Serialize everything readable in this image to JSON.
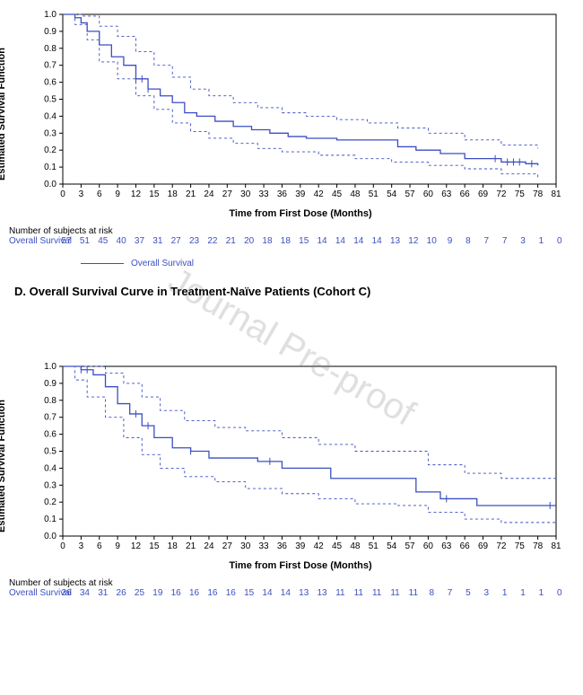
{
  "watermark_text": "Journal Pre-proof",
  "axis": {
    "ylabel": "Estimated Survival Function",
    "xlabel": "Time from First Dose (Months)",
    "ylim": [
      0,
      1.0
    ],
    "ytick_step": 0.1,
    "xlim": [
      0,
      81
    ],
    "xtick_step": 3,
    "axis_color": "#000000",
    "curve_color": "#3b4fc2",
    "ci_dash": "3 3"
  },
  "risk_label": "Number of subjects at risk",
  "risk_series_name": "Overall Survival",
  "legend_text": "Overall Survival",
  "section_heading": "D.  Overall Survival Curve in Treatment-Naïve Patients (Cohort C)",
  "chart1": {
    "main": [
      [
        0,
        1.0
      ],
      [
        2,
        0.98
      ],
      [
        3,
        0.95
      ],
      [
        4,
        0.9
      ],
      [
        6,
        0.82
      ],
      [
        8,
        0.75
      ],
      [
        10,
        0.7
      ],
      [
        12,
        0.62
      ],
      [
        14,
        0.56
      ],
      [
        16,
        0.52
      ],
      [
        18,
        0.48
      ],
      [
        20,
        0.42
      ],
      [
        22,
        0.4
      ],
      [
        25,
        0.37
      ],
      [
        28,
        0.34
      ],
      [
        31,
        0.32
      ],
      [
        34,
        0.3
      ],
      [
        37,
        0.28
      ],
      [
        40,
        0.27
      ],
      [
        45,
        0.26
      ],
      [
        50,
        0.26
      ],
      [
        55,
        0.22
      ],
      [
        58,
        0.2
      ],
      [
        62,
        0.18
      ],
      [
        66,
        0.15
      ],
      [
        72,
        0.13
      ],
      [
        76,
        0.12
      ],
      [
        78,
        0.11
      ]
    ],
    "upper": [
      [
        0,
        1.0
      ],
      [
        3,
        0.99
      ],
      [
        6,
        0.93
      ],
      [
        9,
        0.87
      ],
      [
        12,
        0.78
      ],
      [
        15,
        0.7
      ],
      [
        18,
        0.63
      ],
      [
        21,
        0.56
      ],
      [
        24,
        0.52
      ],
      [
        28,
        0.48
      ],
      [
        32,
        0.45
      ],
      [
        36,
        0.42
      ],
      [
        40,
        0.4
      ],
      [
        45,
        0.38
      ],
      [
        50,
        0.36
      ],
      [
        55,
        0.33
      ],
      [
        60,
        0.3
      ],
      [
        66,
        0.26
      ],
      [
        72,
        0.23
      ],
      [
        78,
        0.21
      ]
    ],
    "lower": [
      [
        0,
        1.0
      ],
      [
        2,
        0.94
      ],
      [
        4,
        0.85
      ],
      [
        6,
        0.72
      ],
      [
        9,
        0.62
      ],
      [
        12,
        0.52
      ],
      [
        15,
        0.44
      ],
      [
        18,
        0.36
      ],
      [
        21,
        0.31
      ],
      [
        24,
        0.27
      ],
      [
        28,
        0.24
      ],
      [
        32,
        0.21
      ],
      [
        36,
        0.19
      ],
      [
        42,
        0.17
      ],
      [
        48,
        0.15
      ],
      [
        54,
        0.13
      ],
      [
        60,
        0.11
      ],
      [
        66,
        0.09
      ],
      [
        72,
        0.06
      ],
      [
        78,
        0.04
      ]
    ],
    "censor_x": [
      12,
      13,
      14,
      71,
      73,
      74,
      75,
      77
    ],
    "risk": [
      57,
      51,
      45,
      40,
      37,
      31,
      27,
      23,
      22,
      21,
      20,
      18,
      18,
      15,
      14,
      14,
      14,
      14,
      13,
      12,
      10,
      9,
      8,
      7,
      7,
      3,
      1,
      0
    ]
  },
  "chart2": {
    "main": [
      [
        0,
        1.0
      ],
      [
        3,
        0.98
      ],
      [
        5,
        0.95
      ],
      [
        7,
        0.88
      ],
      [
        9,
        0.78
      ],
      [
        11,
        0.72
      ],
      [
        13,
        0.65
      ],
      [
        15,
        0.58
      ],
      [
        18,
        0.52
      ],
      [
        21,
        0.5
      ],
      [
        24,
        0.46
      ],
      [
        28,
        0.46
      ],
      [
        32,
        0.44
      ],
      [
        36,
        0.4
      ],
      [
        40,
        0.4
      ],
      [
        44,
        0.34
      ],
      [
        50,
        0.34
      ],
      [
        55,
        0.34
      ],
      [
        58,
        0.26
      ],
      [
        62,
        0.22
      ],
      [
        68,
        0.18
      ],
      [
        74,
        0.18
      ],
      [
        81,
        0.18
      ]
    ],
    "upper": [
      [
        0,
        1.0
      ],
      [
        4,
        1.0
      ],
      [
        7,
        0.96
      ],
      [
        10,
        0.9
      ],
      [
        13,
        0.82
      ],
      [
        16,
        0.74
      ],
      [
        20,
        0.68
      ],
      [
        25,
        0.64
      ],
      [
        30,
        0.62
      ],
      [
        36,
        0.58
      ],
      [
        42,
        0.54
      ],
      [
        48,
        0.5
      ],
      [
        55,
        0.5
      ],
      [
        60,
        0.42
      ],
      [
        66,
        0.37
      ],
      [
        72,
        0.34
      ],
      [
        81,
        0.33
      ]
    ],
    "lower": [
      [
        0,
        1.0
      ],
      [
        2,
        0.92
      ],
      [
        4,
        0.82
      ],
      [
        7,
        0.7
      ],
      [
        10,
        0.58
      ],
      [
        13,
        0.48
      ],
      [
        16,
        0.4
      ],
      [
        20,
        0.35
      ],
      [
        25,
        0.32
      ],
      [
        30,
        0.28
      ],
      [
        36,
        0.25
      ],
      [
        42,
        0.22
      ],
      [
        48,
        0.19
      ],
      [
        55,
        0.18
      ],
      [
        60,
        0.14
      ],
      [
        66,
        0.1
      ],
      [
        72,
        0.08
      ],
      [
        81,
        0.07
      ]
    ],
    "censor_x": [
      3,
      4,
      12,
      14,
      21,
      34,
      63,
      80
    ],
    "risk": [
      36,
      34,
      31,
      26,
      25,
      19,
      16,
      16,
      16,
      16,
      15,
      14,
      14,
      13,
      13,
      11,
      11,
      11,
      11,
      11,
      8,
      7,
      5,
      3,
      1,
      1,
      1,
      0
    ]
  }
}
